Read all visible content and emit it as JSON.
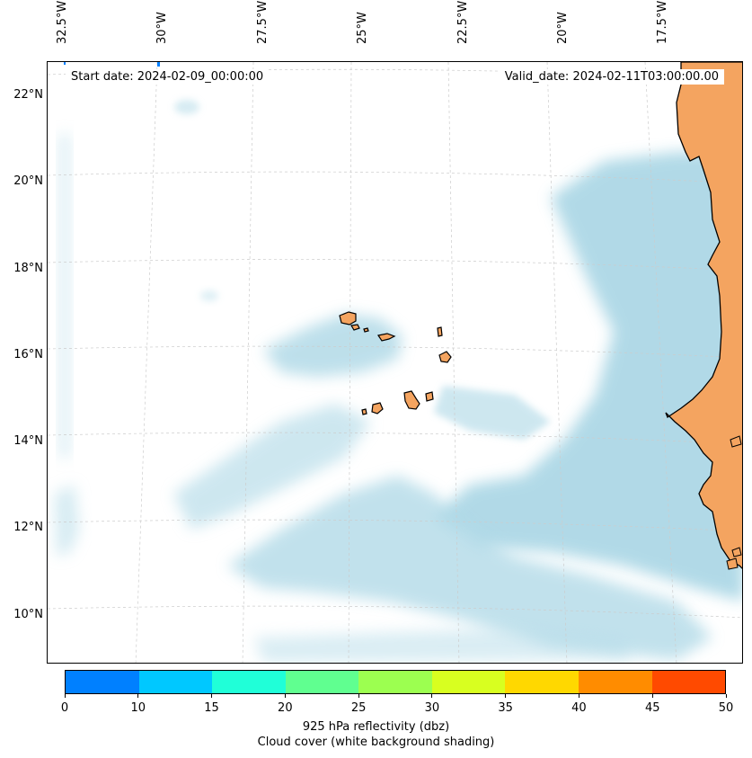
{
  "header": {
    "start_date": "Start date: 2024-02-09_00:00:00",
    "valid_date": "Valid_date: 2024-02-11T03:00:00.00"
  },
  "axes": {
    "longitude_labels": [
      "32.5°W",
      "30°W",
      "27.5°W",
      "25°W",
      "22.5°W",
      "20°W",
      "17.5°W"
    ],
    "latitude_labels": [
      "22°N",
      "20°N",
      "18°N",
      "16°N",
      "14°N",
      "12°N",
      "10°N"
    ]
  },
  "colorbar": {
    "ticks": [
      "0",
      "10",
      "15",
      "20",
      "25",
      "30",
      "35",
      "40",
      "45",
      "50"
    ],
    "colors": [
      "#0080ff",
      "#00c8ff",
      "#20ffd8",
      "#60ff90",
      "#9cff50",
      "#d8ff20",
      "#ffd800",
      "#ff8c00",
      "#ff4a00"
    ],
    "label_line1": "925 hPa reflectivity (dbz)",
    "label_line2": "Cloud cover (white background shading)"
  },
  "map_colors": {
    "land": "#f4a460",
    "cloud": "#add8e6",
    "coast": "#000000",
    "grid": "#cccccc"
  }
}
